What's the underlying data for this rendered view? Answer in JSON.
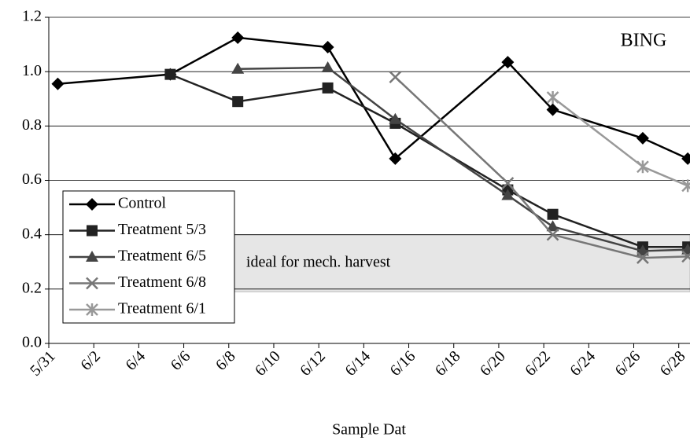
{
  "chart_data": {
    "type": "line",
    "annotation": "BING",
    "x_label": "Sample Dat",
    "band": {
      "label": "ideal for mech. harvest",
      "x": [
        7.9,
        28.5
      ],
      "y": [
        0.19,
        0.4
      ],
      "color": "#e6e6e6"
    },
    "xlim": [
      0,
      28.5
    ],
    "xticks": [
      {
        "value": 0,
        "label": "5/31"
      },
      {
        "value": 2,
        "label": "6/2"
      },
      {
        "value": 4,
        "label": "6/4"
      },
      {
        "value": 6,
        "label": "6/6"
      },
      {
        "value": 8,
        "label": "6/8"
      },
      {
        "value": 10,
        "label": "6/10"
      },
      {
        "value": 12,
        "label": "6/12"
      },
      {
        "value": 14,
        "label": "6/14"
      },
      {
        "value": 16,
        "label": "6/16"
      },
      {
        "value": 18,
        "label": "6/18"
      },
      {
        "value": 20,
        "label": "6/20"
      },
      {
        "value": 22,
        "label": "6/22"
      },
      {
        "value": 24,
        "label": "6/24"
      },
      {
        "value": 26,
        "label": "6/26"
      },
      {
        "value": 28,
        "label": "6/28"
      }
    ],
    "ylim": [
      0,
      1.2
    ],
    "yticks": [
      {
        "value": 0,
        "label": "0.0"
      },
      {
        "value": 0.2,
        "label": "0.2"
      },
      {
        "value": 0.4,
        "label": "0.4"
      },
      {
        "value": 0.6,
        "label": "0.6"
      },
      {
        "value": 0.8,
        "label": "0.8"
      },
      {
        "value": 1,
        "label": "1.0"
      },
      {
        "value": 1.2,
        "label": "1.2"
      }
    ],
    "grid": true,
    "legend": "left",
    "series": [
      {
        "name": "Control",
        "color": "#000000",
        "marker": "diamond",
        "x": [
          0.4,
          5.4,
          8.4,
          12.4,
          15.4,
          20.4,
          22.4,
          26.4,
          28.4
        ],
        "values": [
          0.955,
          0.99,
          1.125,
          1.09,
          0.68,
          1.035,
          0.86,
          0.755,
          0.68
        ]
      },
      {
        "name": "Treatment 5/3",
        "color": "#222222",
        "marker": "square",
        "x": [
          5.4,
          8.4,
          12.4,
          15.4,
          20.4,
          22.4,
          26.4,
          28.4
        ],
        "values": [
          0.99,
          0.89,
          0.94,
          0.81,
          0.565,
          0.475,
          0.355,
          0.355
        ]
      },
      {
        "name": "Treatment 6/5",
        "color": "#444444",
        "marker": "triangle",
        "x": [
          8.4,
          12.4,
          15.4,
          20.4,
          22.4,
          26.4,
          28.4
        ],
        "values": [
          1.01,
          1.015,
          0.825,
          0.545,
          0.43,
          0.34,
          0.345
        ]
      },
      {
        "name": "Treatment 6/8",
        "color": "#777777",
        "marker": "x",
        "x": [
          15.4,
          20.4,
          22.4,
          26.4,
          28.4
        ],
        "values": [
          0.98,
          0.59,
          0.4,
          0.315,
          0.32
        ]
      },
      {
        "name": "Treatment 6/1",
        "color": "#999999",
        "marker": "star",
        "x": [
          22.4,
          26.4,
          28.4
        ],
        "values": [
          0.905,
          0.65,
          0.58
        ]
      }
    ]
  }
}
